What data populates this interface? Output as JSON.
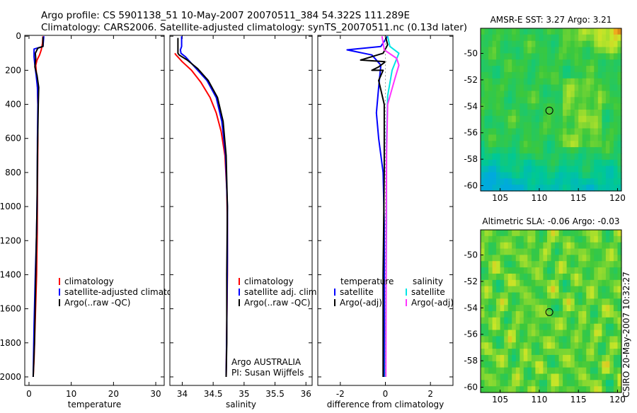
{
  "title": {
    "line1": "Argo profile: CS 5901138_51 10-May-2007 20070511_384 54.322S 111.289E",
    "line2": "Climatology: CARS2006. Satellite-adjusted climatology: synTS_20070511.nc (0.13d later)"
  },
  "colors": {
    "climatology": "#ff0000",
    "satellite": "#0000ff",
    "argo": "#000000",
    "sal_satellite": "#00e5e5",
    "sal_argo": "#ff33ff",
    "zero_line": "#9a9a9a"
  },
  "credit": "CSIRO 20-May-2007 10:32:27",
  "chart_data": [
    {
      "id": "temperature",
      "type": "line",
      "xlabel": "temperature",
      "ylabel": "",
      "xlim": [
        -1,
        32
      ],
      "ylim": [
        2050,
        -5
      ],
      "xticks": [
        0,
        10,
        20,
        30
      ],
      "yticks": [
        0,
        200,
        400,
        600,
        800,
        1000,
        1200,
        1400,
        1600,
        1800,
        2000
      ],
      "legend": {
        "position": "lower-right",
        "entries": [
          "climatology",
          "satellite-adjusted climatology",
          "Argo(..raw -QC)"
        ]
      },
      "series": [
        {
          "name": "climatology",
          "color": "climatology",
          "x": [
            3.3,
            3.2,
            2.9,
            2.5,
            1.9,
            1.6,
            1.8,
            2.0,
            2.1,
            2.1,
            2.0,
            1.95,
            1.8,
            1.5,
            1.2,
            1.0
          ],
          "y": [
            0,
            40,
            80,
            110,
            140,
            170,
            230,
            300,
            400,
            600,
            900,
            1150,
            1400,
            1650,
            1900,
            2000
          ]
        },
        {
          "name": "satellite-adjusted climatology",
          "color": "satellite",
          "x": [
            3.5,
            3.3,
            1.2,
            1.2,
            1.4,
            1.7,
            2.0,
            2.1,
            2.0,
            1.95,
            1.8,
            1.5,
            1.2,
            1.0
          ],
          "y": [
            0,
            60,
            75,
            120,
            170,
            230,
            300,
            400,
            600,
            900,
            1150,
            1400,
            1700,
            2000
          ]
        },
        {
          "name": "Argo(..raw -QC)",
          "color": "argo",
          "x": [
            3.3,
            3.3,
            2.1,
            1.5,
            1.6,
            1.4,
            1.9,
            2.3,
            2.2,
            2.0,
            1.9,
            1.6,
            1.3,
            1.0
          ],
          "y": [
            5,
            60,
            70,
            100,
            130,
            180,
            230,
            300,
            400,
            700,
            1000,
            1400,
            1800,
            2000
          ]
        }
      ]
    },
    {
      "id": "salinity",
      "type": "line",
      "xlabel": "salinity",
      "ylabel": "",
      "xlim": [
        33.8,
        36.1
      ],
      "ylim": [
        2050,
        -5
      ],
      "xticks": [
        34,
        34.5,
        35,
        35.5,
        36
      ],
      "yticks": [
        0,
        200,
        400,
        600,
        800,
        1000,
        1200,
        1400,
        1600,
        1800,
        2000
      ],
      "legend": {
        "position": "lower-right",
        "entries": [
          "climatology",
          "satellite adj. clim.",
          "Argo(..raw -QC)"
        ]
      },
      "series": [
        {
          "name": "climatology",
          "color": "climatology",
          "x": [
            33.88,
            33.9,
            34.0,
            34.15,
            34.3,
            34.45,
            34.55,
            34.63,
            34.69,
            34.72,
            34.73,
            34.73,
            34.72,
            34.71
          ],
          "y": [
            100,
            110,
            150,
            200,
            270,
            360,
            450,
            560,
            700,
            900,
            1100,
            1400,
            1700,
            2000
          ]
        },
        {
          "name": "satellite adj. clim.",
          "color": "satellite",
          "x": [
            33.99,
            33.99,
            33.97,
            33.98,
            34.05,
            34.2,
            34.4,
            34.55,
            34.64,
            34.7,
            34.73,
            34.73,
            34.72,
            34.71
          ],
          "y": [
            0,
            60,
            80,
            100,
            120,
            180,
            260,
            360,
            500,
            700,
            1000,
            1300,
            1700,
            2000
          ]
        },
        {
          "name": "Argo(..raw -QC)",
          "color": "argo",
          "x": [
            33.93,
            33.93,
            33.95,
            34.08,
            34.25,
            34.42,
            34.57,
            34.66,
            34.71,
            34.73,
            34.72,
            34.72,
            34.71
          ],
          "y": [
            10,
            100,
            110,
            140,
            190,
            260,
            360,
            500,
            700,
            1000,
            1400,
            1800,
            2000
          ]
        }
      ]
    },
    {
      "id": "difference",
      "type": "line",
      "xlabel": "difference from climatology",
      "ylabel": "",
      "xlim": [
        -3,
        3
      ],
      "ylim": [
        2050,
        -5
      ],
      "xticks": [
        -2,
        0,
        2
      ],
      "yticks": [
        0,
        200,
        400,
        600,
        800,
        1000,
        1200,
        1400,
        1600,
        1800,
        2000
      ],
      "legend": {
        "position": "lower",
        "temp_header": "temperature",
        "sal_header": "salinity",
        "temp_entries": [
          "satellite",
          "Argo(-adj)"
        ],
        "sal_entries": [
          "satellite",
          "Argo(-adj)"
        ]
      },
      "series": [
        {
          "name": "temp satellite",
          "color": "satellite",
          "x": [
            0.1,
            -0.2,
            -1.7,
            -0.6,
            -0.2,
            -0.3,
            -0.4,
            -0.3,
            -0.1,
            -0.05,
            -0.05,
            -0.05
          ],
          "y": [
            0,
            60,
            80,
            110,
            170,
            300,
            450,
            600,
            800,
            1100,
            1500,
            2000
          ]
        },
        {
          "name": "temp Argo(-adj)",
          "color": "argo",
          "x": [
            0.0,
            0.1,
            -0.1,
            -1.1,
            0.0,
            -0.3,
            -0.6,
            -0.1,
            -0.3,
            -0.05,
            -0.05,
            -0.1,
            -0.1
          ],
          "y": [
            0,
            50,
            100,
            140,
            150,
            180,
            200,
            200,
            260,
            400,
            800,
            1400,
            2000
          ]
        },
        {
          "name": "sal satellite",
          "color": "sal_satellite",
          "x": [
            0.1,
            0.2,
            0.6,
            0.3,
            0.1,
            0.05,
            0.05,
            0.0
          ],
          "y": [
            0,
            60,
            100,
            200,
            350,
            600,
            1100,
            2000
          ]
        },
        {
          "name": "sal Argo(-adj)",
          "color": "sal_argo",
          "x": [
            -0.15,
            -0.05,
            0.5,
            0.6,
            0.4,
            0.1,
            0.05,
            0.02
          ],
          "y": [
            0,
            80,
            130,
            170,
            260,
            400,
            700,
            2000
          ]
        },
        {
          "name": "zero",
          "color": "zero_line",
          "dashed": true,
          "x": [
            0,
            0
          ],
          "y": [
            0,
            2000
          ]
        }
      ]
    },
    {
      "id": "sst_map",
      "type": "heatmap",
      "title": "AMSR-E SST: 3.27 Argo: 3.21",
      "xlim": [
        102.5,
        120.5
      ],
      "ylim": [
        -60.4,
        -48.1
      ],
      "xticks": [
        105,
        110,
        115,
        120
      ],
      "yticks": [
        -50,
        -52,
        -54,
        -56,
        -58,
        -60
      ],
      "marker": {
        "lon": 111.289,
        "lat": -54.322
      }
    },
    {
      "id": "sla_map",
      "type": "heatmap",
      "title": "Altimetric SLA: -0.06 Argo: -0.03",
      "xlim": [
        102.5,
        120.5
      ],
      "ylim": [
        -60.4,
        -48.1
      ],
      "xticks": [
        105,
        110,
        115,
        120
      ],
      "yticks": [
        -50,
        -52,
        -54,
        -56,
        -58,
        -60
      ],
      "marker": {
        "lon": 111.289,
        "lat": -54.322
      }
    }
  ]
}
